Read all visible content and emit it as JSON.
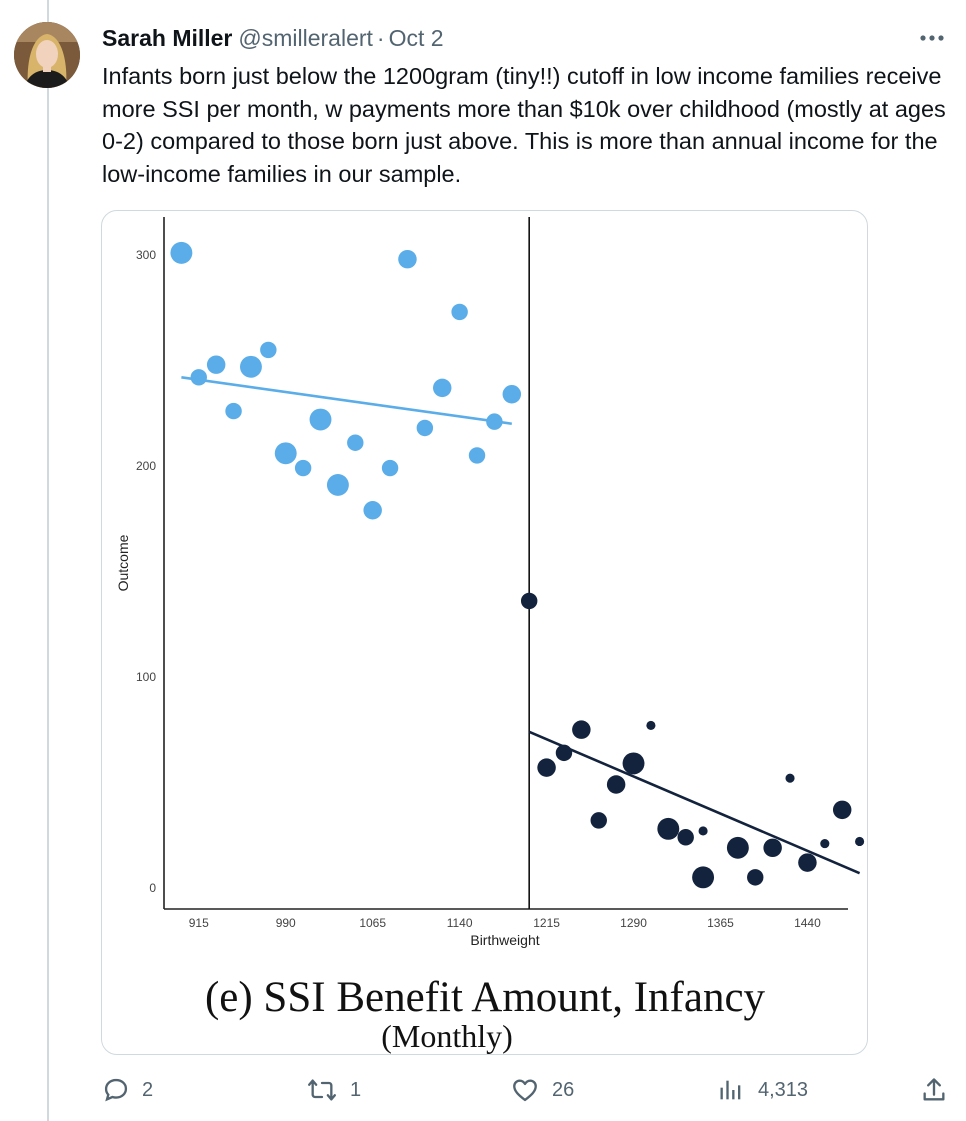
{
  "tweet": {
    "author_name": "Sarah Miller",
    "author_handle": "@smilleralert",
    "separator": "·",
    "date": "Oct 2",
    "text": "Infants born just below the 1200gram (tiny!!) cutoff in low income families receive more SSI per month, w payments more than $10k over childhood (mostly at ages 0-2) compared to those born just above. This is more than annual income for the low-income families in our sample.",
    "more_icon": "more-horizontal-icon"
  },
  "actions": {
    "replies": "2",
    "reposts": "1",
    "likes": "26",
    "views": "4,313"
  },
  "colors": {
    "left_series": "#5aade8",
    "right_series": "#13233d",
    "muted": "#536471"
  },
  "chart_data": {
    "type": "scatter",
    "title": "(e) SSI Benefit Amount, Infancy",
    "subtitle": "(Monthly)",
    "xlabel": "Birthweight",
    "ylabel": "Outcome",
    "xlim": [
      885,
      1475
    ],
    "ylim": [
      -10,
      318
    ],
    "x_ticks": [
      915,
      990,
      1065,
      1140,
      1215,
      1290,
      1365,
      1440
    ],
    "y_ticks": [
      0,
      100,
      200,
      300
    ],
    "cutoff": 1200,
    "series": [
      {
        "side": "below",
        "color": "#5aade8",
        "points": [
          {
            "x": 900,
            "y": 301,
            "w": 3
          },
          {
            "x": 915,
            "y": 242,
            "w": 1.5
          },
          {
            "x": 930,
            "y": 248,
            "w": 2
          },
          {
            "x": 945,
            "y": 226,
            "w": 1.5
          },
          {
            "x": 960,
            "y": 247,
            "w": 3
          },
          {
            "x": 975,
            "y": 255,
            "w": 1.5
          },
          {
            "x": 990,
            "y": 206,
            "w": 3
          },
          {
            "x": 1005,
            "y": 199,
            "w": 1.5
          },
          {
            "x": 1020,
            "y": 222,
            "w": 3
          },
          {
            "x": 1035,
            "y": 191,
            "w": 3
          },
          {
            "x": 1050,
            "y": 211,
            "w": 1.5
          },
          {
            "x": 1065,
            "y": 179,
            "w": 2
          },
          {
            "x": 1080,
            "y": 199,
            "w": 1.5
          },
          {
            "x": 1095,
            "y": 298,
            "w": 2
          },
          {
            "x": 1110,
            "y": 218,
            "w": 1.5
          },
          {
            "x": 1125,
            "y": 237,
            "w": 2
          },
          {
            "x": 1140,
            "y": 273,
            "w": 1.5
          },
          {
            "x": 1155,
            "y": 205,
            "w": 1.5
          },
          {
            "x": 1170,
            "y": 221,
            "w": 1.5
          },
          {
            "x": 1185,
            "y": 234,
            "w": 2
          }
        ],
        "fit": {
          "x": [
            900,
            1185
          ],
          "y": [
            242,
            220
          ]
        }
      },
      {
        "side": "above",
        "color": "#13233d",
        "points": [
          {
            "x": 1200,
            "y": 136,
            "w": 1.5
          },
          {
            "x": 1215,
            "y": 57,
            "w": 2
          },
          {
            "x": 1230,
            "y": 64,
            "w": 1.5
          },
          {
            "x": 1245,
            "y": 75,
            "w": 2
          },
          {
            "x": 1260,
            "y": 32,
            "w": 1.5
          },
          {
            "x": 1275,
            "y": 49,
            "w": 2
          },
          {
            "x": 1290,
            "y": 59,
            "w": 3
          },
          {
            "x": 1305,
            "y": 77,
            "w": 0.3
          },
          {
            "x": 1320,
            "y": 28,
            "w": 3
          },
          {
            "x": 1335,
            "y": 24,
            "w": 1.5
          },
          {
            "x": 1350,
            "y": 27,
            "w": 0.3
          },
          {
            "x": 1350,
            "y": 5,
            "w": 3
          },
          {
            "x": 1380,
            "y": 19,
            "w": 3
          },
          {
            "x": 1395,
            "y": 5,
            "w": 1.5
          },
          {
            "x": 1410,
            "y": 19,
            "w": 2
          },
          {
            "x": 1425,
            "y": 52,
            "w": 0.3
          },
          {
            "x": 1440,
            "y": 12,
            "w": 2
          },
          {
            "x": 1455,
            "y": 21,
            "w": 0.3
          },
          {
            "x": 1470,
            "y": 37,
            "w": 2
          },
          {
            "x": 1485,
            "y": 22,
            "w": 0.3
          }
        ],
        "fit": {
          "x": [
            1200,
            1485
          ],
          "y": [
            74,
            7
          ]
        }
      }
    ]
  }
}
